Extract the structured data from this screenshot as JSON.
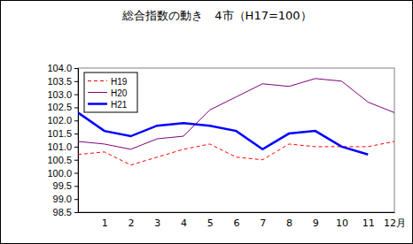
{
  "chart_data": {
    "type": "line",
    "title": "総合指数の動き　4市（H17=100）",
    "categories": [
      null,
      "1",
      "2",
      "3",
      "4",
      "5",
      "6",
      "7",
      "8",
      "9",
      "10",
      "11",
      "12月"
    ],
    "series": [
      {
        "name": "H19",
        "color": "#ff0000",
        "line_style": "dashed",
        "values": [
          100.7,
          100.8,
          100.3,
          100.6,
          100.9,
          101.1,
          100.6,
          100.5,
          101.1,
          101.0,
          101.0,
          101.0,
          101.2
        ]
      },
      {
        "name": "H20",
        "color": "#800080",
        "line_style": "solid",
        "values": [
          101.2,
          101.1,
          100.9,
          101.3,
          101.4,
          102.4,
          102.9,
          103.4,
          103.3,
          103.6,
          103.5,
          102.7,
          102.3
        ]
      },
      {
        "name": "H21",
        "color": "#0000ff",
        "line_style": "solid",
        "values": [
          102.3,
          101.6,
          101.4,
          101.8,
          101.9,
          101.8,
          101.6,
          100.9,
          101.5,
          101.6,
          101.0,
          100.7,
          null
        ]
      }
    ],
    "ylim": [
      98.5,
      104
    ],
    "yticks": [
      98.5,
      {
        "value": 99,
        "label": "99.0"
      },
      99.5,
      {
        "value": 100,
        "label": "100.0"
      },
      100.5,
      {
        "value": 101,
        "label": "101.0"
      },
      101.5,
      {
        "value": 102,
        "label": "102.0"
      },
      102.5,
      {
        "value": 103,
        "label": "103.0"
      },
      103.5,
      {
        "value": 104,
        "label": "104.0"
      }
    ],
    "grid": false,
    "legend": "upper left"
  }
}
